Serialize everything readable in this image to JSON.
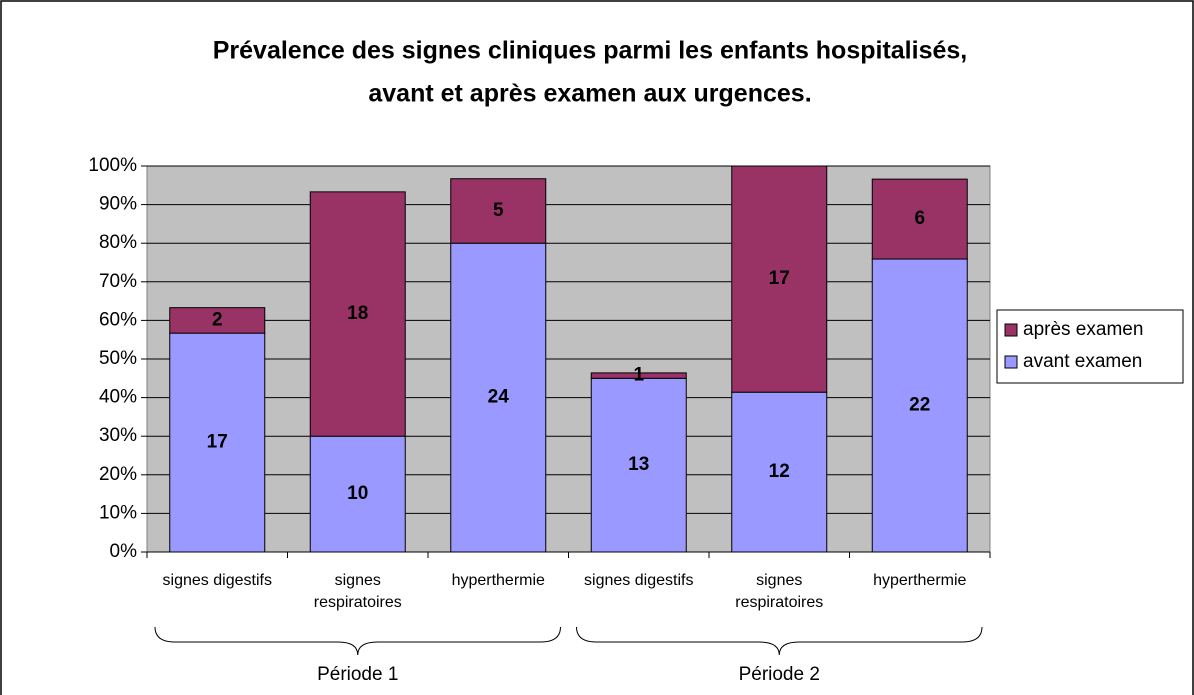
{
  "chart_data": {
    "type": "stacked_bar",
    "title": [
      "Prévalence des signes cliniques parmi les enfants hospitalisés,",
      "avant et après examen aux urgences."
    ],
    "categories": [
      "signes digestifs",
      "signes respiratoires",
      "hyperthermie",
      "signes digestifs",
      "signes respiratoires",
      "hyperthermie"
    ],
    "groups": [
      "Période 1",
      "Période 2"
    ],
    "series": [
      {
        "name": "avant examen",
        "color": "#9999ff",
        "values": [
          56.7,
          30,
          80,
          45,
          41.4,
          75.9
        ],
        "counts": [
          17,
          10,
          24,
          13,
          12,
          22
        ]
      },
      {
        "name": "après examen",
        "color": "#993366",
        "values": [
          6.6,
          63.3,
          16.7,
          1.4,
          58.6,
          20.7
        ],
        "counts": [
          2,
          18,
          5,
          1,
          17,
          6
        ]
      }
    ],
    "ylim": [
      0,
      100
    ],
    "yticks": [
      {
        "value": 0,
        "label": "0%"
      },
      {
        "value": 10,
        "label": "10%"
      },
      {
        "value": 20,
        "label": "20%"
      },
      {
        "value": 30,
        "label": "30%"
      },
      {
        "value": 40,
        "label": "40%"
      },
      {
        "value": 50,
        "label": "50%"
      },
      {
        "value": 60,
        "label": "60%"
      },
      {
        "value": 70,
        "label": "70%"
      },
      {
        "value": 80,
        "label": "80%"
      },
      {
        "value": 90,
        "label": "90%"
      },
      {
        "value": 100,
        "label": "100%"
      }
    ],
    "grid": true,
    "legend": "right"
  }
}
